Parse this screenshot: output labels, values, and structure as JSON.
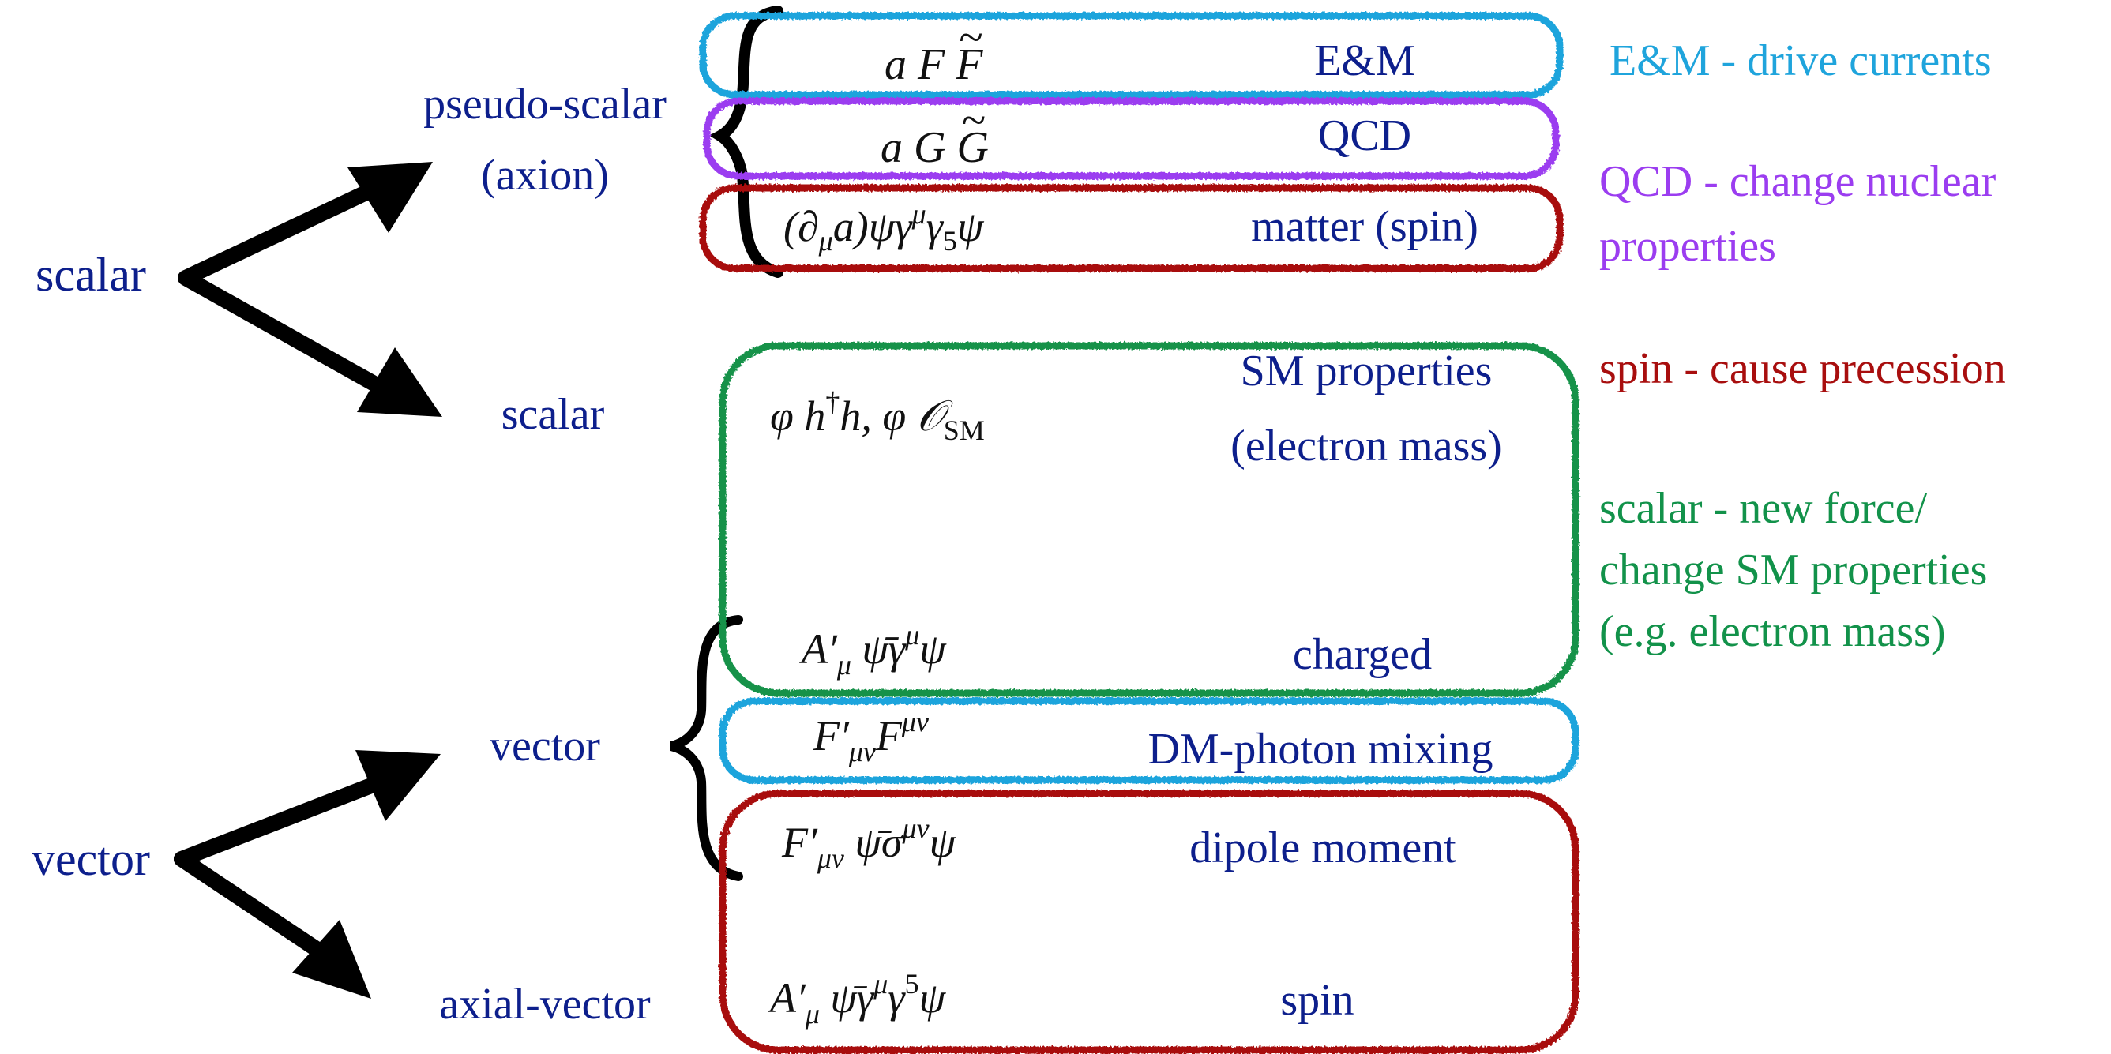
{
  "colors": {
    "navy": "#0d1f8c",
    "sky": "#1fa4dc",
    "purple": "#9b3df0",
    "crimson": "#a80e0e",
    "green": "#12924a",
    "black": "#000000"
  },
  "tree": {
    "scalar_root": "scalar",
    "vector_root": "vector",
    "pseudo_scalar_line1": "pseudo-scalar",
    "pseudo_scalar_line2": "(axion)",
    "scalar_child": "scalar",
    "vector_child": "vector",
    "axial_vector_child": "axial-vector"
  },
  "couplings": {
    "em": {
      "operator": "a F F̃",
      "label": "E&M"
    },
    "qcd": {
      "operator": "a G G̃",
      "label": "QCD"
    },
    "spin_matter": {
      "operator": "(∂μa)ψγμγ5ψ",
      "label": "matter (spin)"
    },
    "scalar_sm": {
      "operator": "φ h†h, φ O_SM",
      "label_line1": "SM properties",
      "label_line2": "(electron mass)"
    },
    "charged": {
      "operator": "A′μ ψ̄γμψ",
      "label": "charged"
    },
    "mixing": {
      "operator": "F′μν Fμν",
      "label": "DM-photon mixing"
    },
    "dipole": {
      "operator": "F′μν ψ̄σμνψ",
      "label": "dipole moment"
    },
    "spin": {
      "operator": "A′μ ψ̄γμγ5ψ",
      "label": "spin"
    }
  },
  "notes": {
    "em": "E&M - drive currents",
    "qcd_line1": "QCD - change nuclear",
    "qcd_line2": "properties",
    "spin": "spin - cause precession",
    "scalar_line1": "scalar - new force/",
    "scalar_line2": "change SM properties",
    "scalar_line3": "(e.g. electron mass)"
  }
}
